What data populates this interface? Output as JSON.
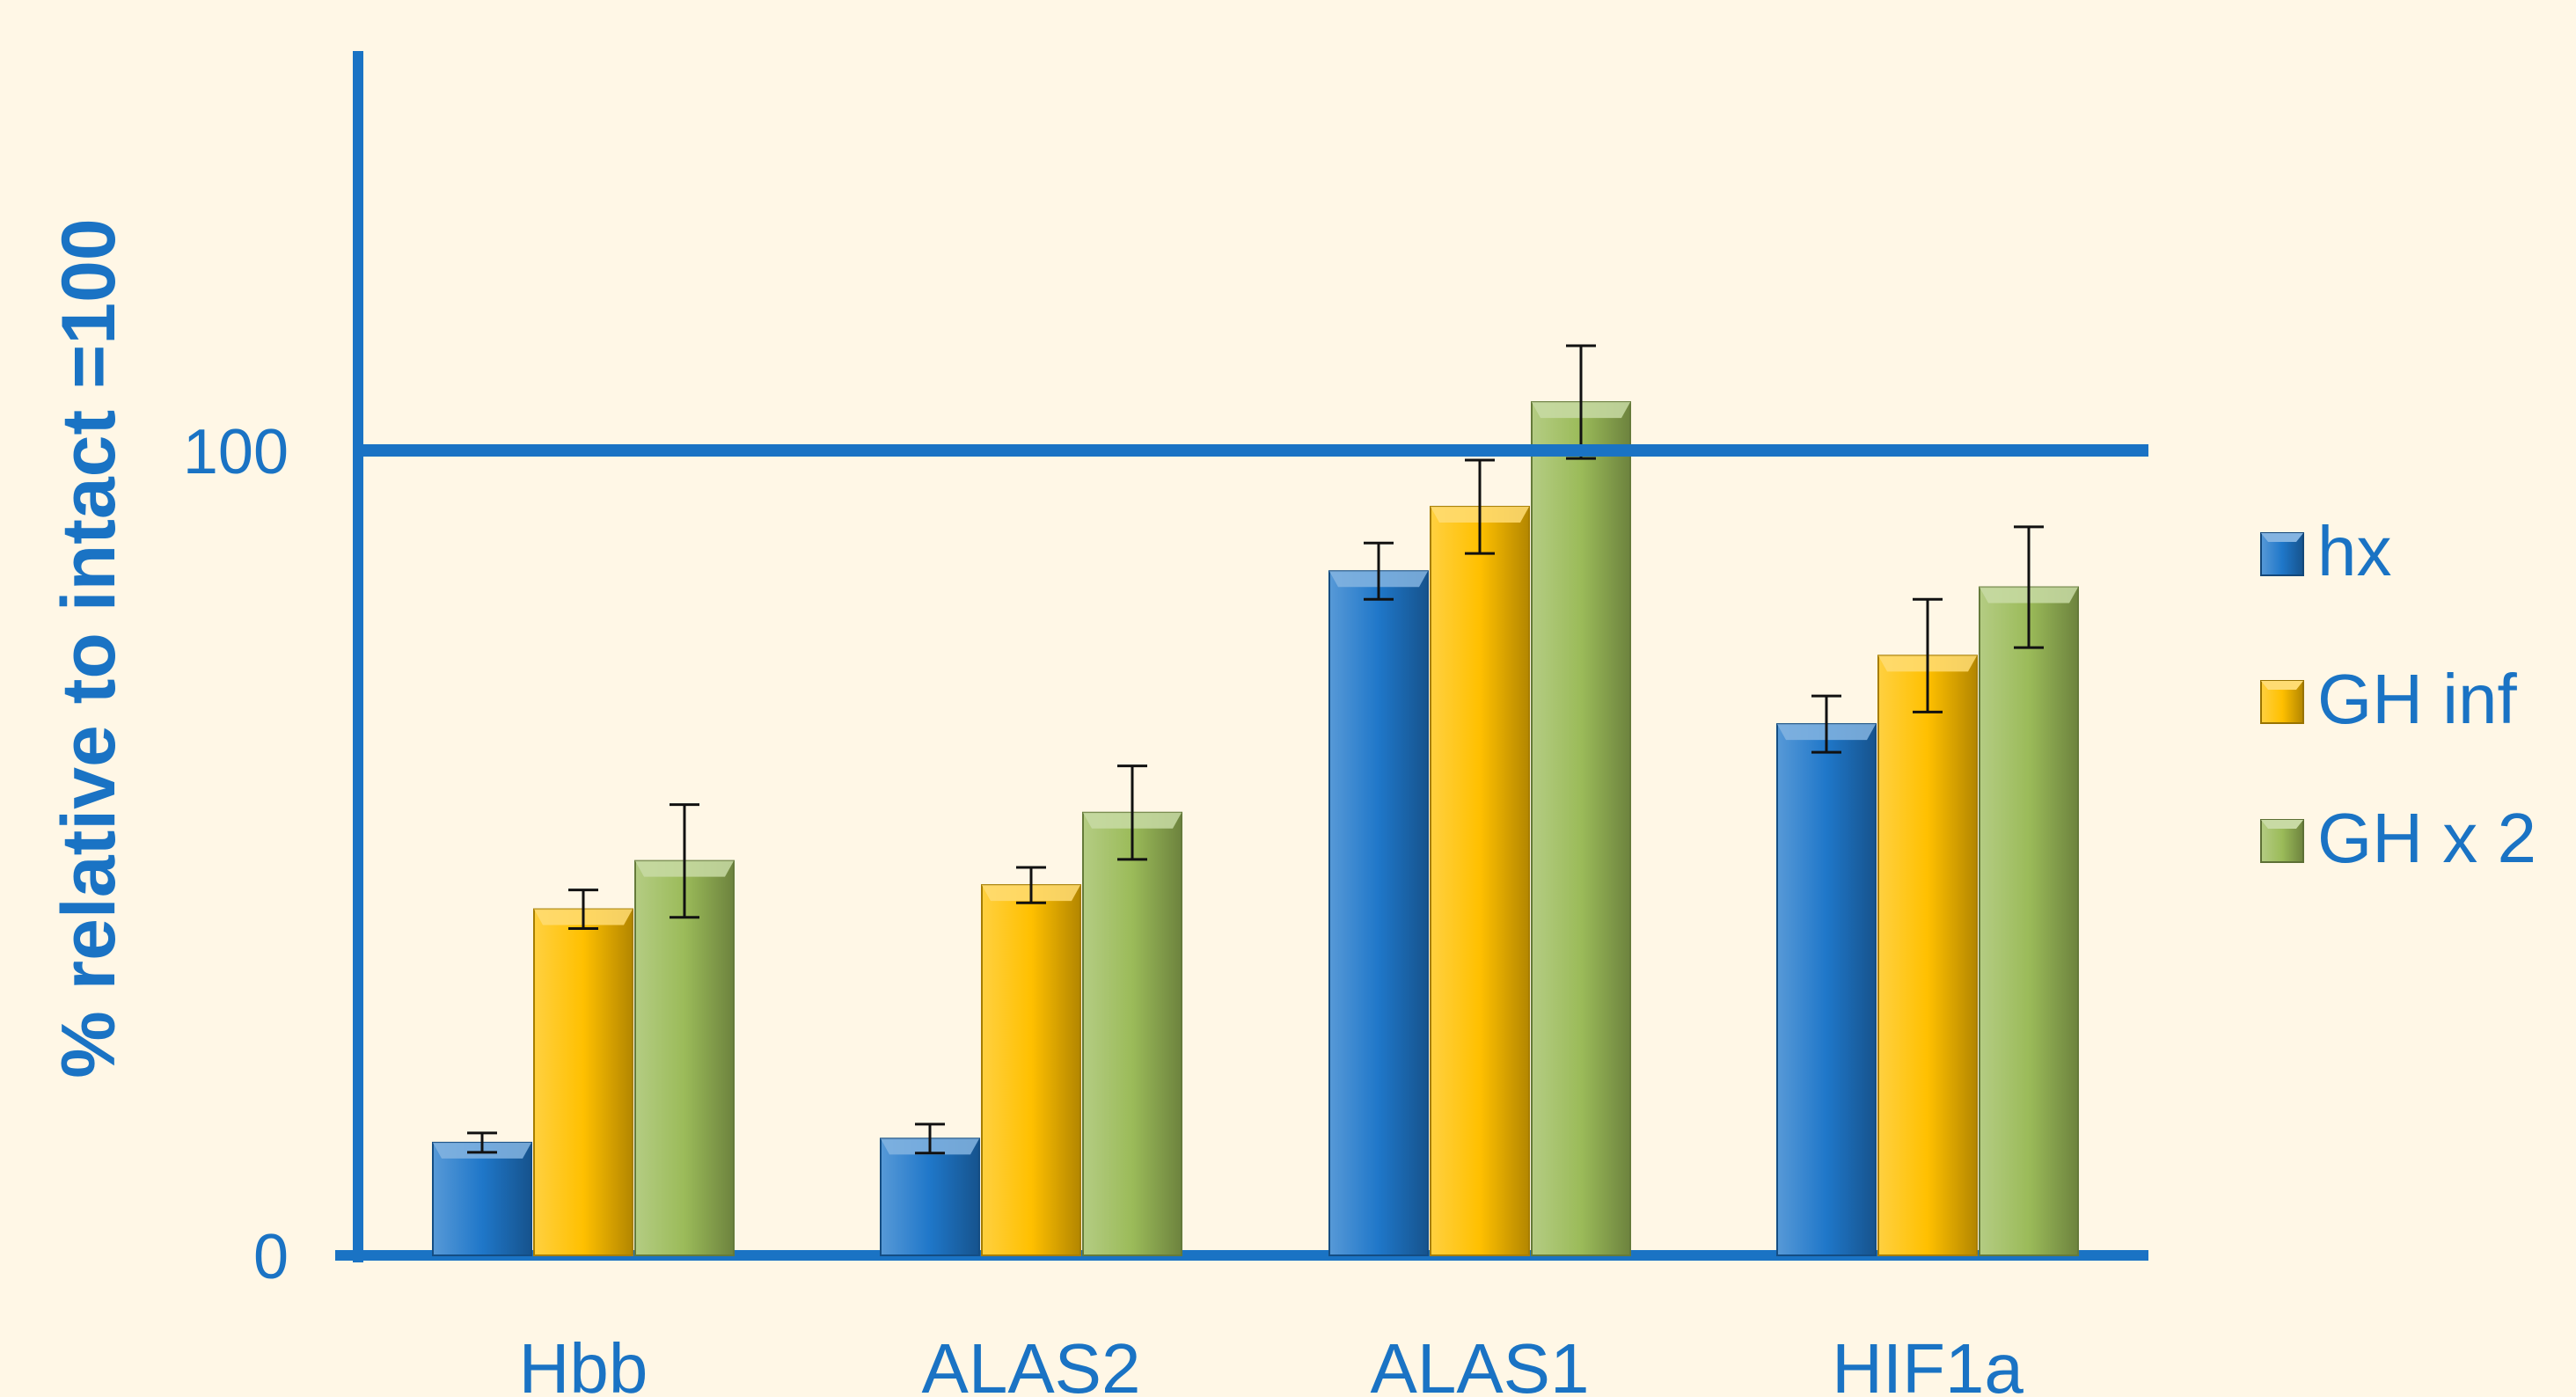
{
  "chart_data": {
    "type": "bar",
    "ylabel": "% relative to intact =100",
    "xlabel": "",
    "ylim": [
      0,
      150
    ],
    "yticks": [
      0,
      100
    ],
    "reference_line": 100,
    "categories": [
      "Hbb",
      "ALAS2",
      "ALAS1",
      "HIF1a"
    ],
    "series": [
      {
        "name": "hx",
        "color": "#1f77c9",
        "values": [
          14,
          14.5,
          85,
          66
        ],
        "errors": [
          1.2,
          1.8,
          3.5,
          3.5
        ]
      },
      {
        "name": "GH inf",
        "color": "#ffc000",
        "values": [
          43,
          46,
          93,
          74.5
        ],
        "errors": [
          2.4,
          2.2,
          5.8,
          7
        ]
      },
      {
        "name": "GH x 2",
        "color": "#9bbb59",
        "values": [
          49,
          55,
          106,
          83
        ],
        "errors": [
          7,
          5.8,
          7,
          7.5
        ]
      }
    ],
    "legend": "right",
    "grid": false
  }
}
